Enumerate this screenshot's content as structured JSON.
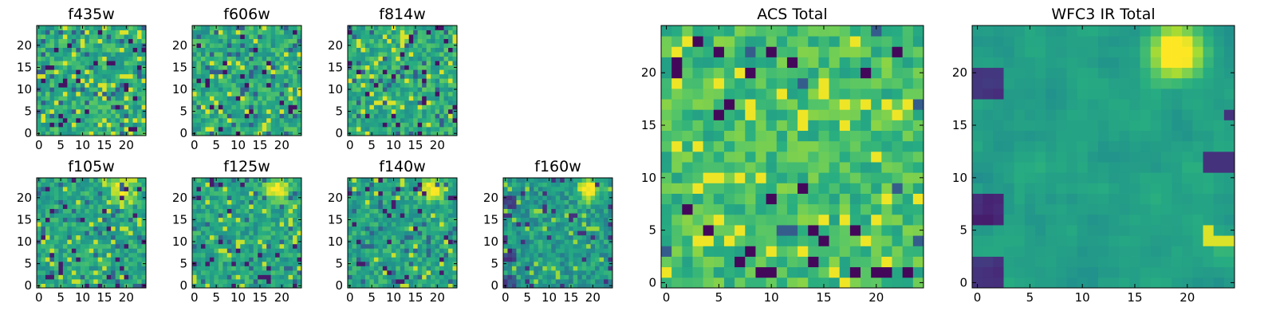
{
  "chart_data": [
    {
      "type": "heatmap",
      "title": "f435w",
      "grid": [
        25,
        25
      ],
      "x_ticks": [
        "0",
        "5",
        "10",
        "15",
        "20"
      ],
      "y_ticks": [
        "0",
        "5",
        "10",
        "15",
        "20"
      ],
      "xlim": [
        -0.5,
        24.5
      ],
      "ylim": [
        -0.5,
        24.5
      ],
      "colormap": "viridis",
      "texture": "noise"
    },
    {
      "type": "heatmap",
      "title": "f606w",
      "grid": [
        25,
        25
      ],
      "x_ticks": [
        "0",
        "5",
        "10",
        "15",
        "20"
      ],
      "y_ticks": [
        "0",
        "5",
        "10",
        "15",
        "20"
      ],
      "xlim": [
        -0.5,
        24.5
      ],
      "ylim": [
        -0.5,
        24.5
      ],
      "colormap": "viridis",
      "texture": "noise"
    },
    {
      "type": "heatmap",
      "title": "f814w",
      "grid": [
        25,
        25
      ],
      "x_ticks": [
        "0",
        "5",
        "10",
        "15",
        "20"
      ],
      "y_ticks": [
        "0",
        "5",
        "10",
        "15",
        "20"
      ],
      "xlim": [
        -0.5,
        24.5
      ],
      "ylim": [
        -0.5,
        24.5
      ],
      "colormap": "viridis",
      "texture": "noise"
    },
    {
      "type": "heatmap",
      "title": "f105w",
      "grid": [
        25,
        25
      ],
      "x_ticks": [
        "0",
        "5",
        "10",
        "15",
        "20"
      ],
      "y_ticks": [
        "0",
        "5",
        "10",
        "15",
        "20"
      ],
      "xlim": [
        -0.5,
        24.5
      ],
      "ylim": [
        -0.5,
        24.5
      ],
      "colormap": "viridis",
      "texture": "source-top-right"
    },
    {
      "type": "heatmap",
      "title": "f125w",
      "grid": [
        25,
        25
      ],
      "x_ticks": [
        "0",
        "5",
        "10",
        "15",
        "20"
      ],
      "y_ticks": [
        "0",
        "5",
        "10",
        "15",
        "20"
      ],
      "xlim": [
        -0.5,
        24.5
      ],
      "ylim": [
        -0.5,
        24.5
      ],
      "colormap": "viridis",
      "texture": "source-top-right"
    },
    {
      "type": "heatmap",
      "title": "f140w",
      "grid": [
        25,
        25
      ],
      "x_ticks": [
        "0",
        "5",
        "10",
        "15",
        "20"
      ],
      "y_ticks": [
        "0",
        "5",
        "10",
        "15",
        "20"
      ],
      "xlim": [
        -0.5,
        24.5
      ],
      "ylim": [
        -0.5,
        24.5
      ],
      "colormap": "viridis",
      "texture": "source-top-right"
    },
    {
      "type": "heatmap",
      "title": "f160w",
      "grid": [
        25,
        25
      ],
      "x_ticks": [
        "0",
        "5",
        "10",
        "15",
        "20"
      ],
      "y_ticks": [
        "0",
        "5",
        "10",
        "15",
        "20"
      ],
      "xlim": [
        -0.5,
        24.5
      ],
      "ylim": [
        -0.5,
        24.5
      ],
      "colormap": "viridis",
      "texture": "source-top-right-dark-left"
    },
    {
      "type": "heatmap",
      "title": "ACS Total",
      "grid": [
        25,
        25
      ],
      "x_ticks": [
        "0",
        "5",
        "10",
        "15",
        "20"
      ],
      "y_ticks": [
        "0",
        "5",
        "10",
        "15",
        "20"
      ],
      "xlim": [
        -0.5,
        24.5
      ],
      "ylim": [
        -0.5,
        24.5
      ],
      "colormap": "viridis",
      "texture": "noise-bright"
    },
    {
      "type": "heatmap",
      "title": "WFC3 IR Total",
      "grid": [
        25,
        25
      ],
      "x_ticks": [
        "0",
        "5",
        "10",
        "15",
        "20"
      ],
      "y_ticks": [
        "0",
        "5",
        "10",
        "15",
        "20"
      ],
      "xlim": [
        -0.5,
        24.5
      ],
      "ylim": [
        -0.5,
        24.5
      ],
      "colormap": "viridis",
      "texture": "smooth-source-top-right-dark-left"
    }
  ]
}
